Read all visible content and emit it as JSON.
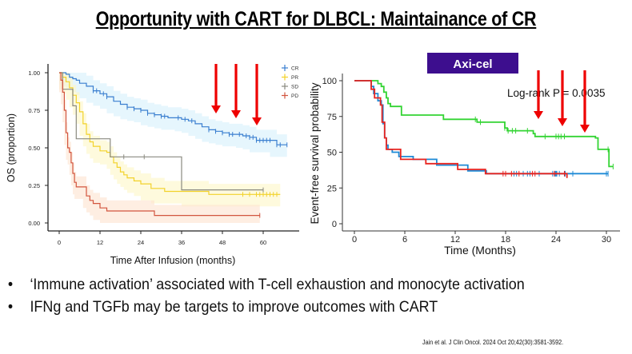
{
  "slide": {
    "title": "Opportunity with CART for DLBCL: Maintainance of CR",
    "bullets": [
      "‘Immune activation’ associated with T-cell exhaustion and monocyte activation",
      "IFNg and TGFb may be targets to improve outcomes with CART"
    ],
    "citation": "Jain et al. J Clin Oncol. 2024 Oct 20;42(30):3581-3592.",
    "bullet_glyph": "•"
  },
  "chart_data": [
    {
      "type": "line",
      "subtype": "kaplan-meier",
      "title": "",
      "xlabel": "Time After Infusion (months)",
      "ylabel": "OS (proportion)",
      "xlim": [
        0,
        68
      ],
      "ylim": [
        0,
        1
      ],
      "xticks": [
        0,
        12,
        24,
        36,
        48,
        60
      ],
      "yticks": [
        "0.00",
        "0.25",
        "0.50",
        "0.75",
        "1.00"
      ],
      "ytick_values": [
        0,
        0.25,
        0.5,
        0.75,
        1.0
      ],
      "legend": "top-right",
      "annotation_arrows_at_x": [
        46,
        52,
        58
      ],
      "series": [
        {
          "name": "CR",
          "color": "#3a7fd0",
          "band": "#d6f0fb",
          "x": [
            0,
            1,
            2,
            3,
            4,
            5,
            6,
            8,
            10,
            12,
            14,
            16,
            18,
            20,
            22,
            24,
            26,
            28,
            30,
            32,
            34,
            36,
            38,
            40,
            42,
            44,
            46,
            48,
            50,
            52,
            54,
            56,
            58,
            60,
            62,
            64,
            67
          ],
          "y": [
            1.0,
            1.0,
            0.99,
            0.97,
            0.96,
            0.95,
            0.93,
            0.91,
            0.88,
            0.86,
            0.84,
            0.81,
            0.79,
            0.77,
            0.76,
            0.75,
            0.73,
            0.72,
            0.71,
            0.7,
            0.7,
            0.69,
            0.68,
            0.66,
            0.64,
            0.62,
            0.61,
            0.6,
            0.59,
            0.59,
            0.58,
            0.57,
            0.55,
            0.55,
            0.55,
            0.52,
            0.52
          ],
          "censor_x": [
            10,
            11,
            13,
            14,
            20,
            22,
            24,
            26,
            28,
            30,
            31,
            35,
            37,
            39,
            44,
            46,
            48,
            50,
            51,
            53,
            55,
            56,
            57,
            58,
            59,
            60,
            61,
            62,
            64,
            65,
            67
          ]
        },
        {
          "name": "PR",
          "color": "#f2d22a",
          "band": "#fdf6c6",
          "x": [
            0,
            1,
            2,
            3,
            4,
            5,
            6,
            7,
            8,
            9,
            10,
            12,
            14,
            15,
            16,
            17,
            18,
            19,
            20,
            22,
            24,
            27,
            31,
            36,
            44,
            60,
            65
          ],
          "y": [
            1.0,
            0.97,
            0.94,
            0.9,
            0.85,
            0.8,
            0.74,
            0.66,
            0.59,
            0.54,
            0.51,
            0.48,
            0.47,
            0.44,
            0.4,
            0.37,
            0.34,
            0.32,
            0.3,
            0.28,
            0.26,
            0.23,
            0.21,
            0.21,
            0.19,
            0.19,
            0.19
          ],
          "censor_x": [
            54,
            56,
            58,
            59,
            60,
            61,
            62,
            63,
            64
          ]
        },
        {
          "name": "SD",
          "color": "#8a8a80",
          "band": null,
          "x": [
            0,
            1,
            2,
            4,
            5,
            14,
            15,
            35,
            36,
            60
          ],
          "y": [
            1.0,
            0.89,
            0.89,
            0.78,
            0.56,
            0.56,
            0.44,
            0.44,
            0.22,
            0.22
          ],
          "censor_x": [
            19,
            25,
            60
          ]
        },
        {
          "name": "PD",
          "color": "#d2553e",
          "band": "#fde3cf",
          "x": [
            0,
            0.5,
            1,
            1.5,
            2,
            2.5,
            3,
            3.5,
            4,
            4.5,
            5,
            6,
            7,
            8,
            9,
            10,
            12,
            14,
            20,
            28,
            40,
            59
          ],
          "y": [
            1.0,
            0.95,
            0.87,
            0.75,
            0.6,
            0.5,
            0.47,
            0.4,
            0.33,
            0.27,
            0.24,
            0.24,
            0.24,
            0.18,
            0.15,
            0.13,
            0.1,
            0.08,
            0.08,
            0.05,
            0.05,
            0.05
          ],
          "censor_x": [
            59
          ]
        }
      ]
    },
    {
      "type": "line",
      "subtype": "kaplan-meier",
      "title": "Axi-cel",
      "title_bg": "#3d0e8e",
      "xlabel": "Time (Months)",
      "ylabel": "Event-free survival probability",
      "xlim": [
        -1.5,
        31
      ],
      "ylim": [
        0,
        100
      ],
      "xticks": [
        0,
        6,
        12,
        18,
        24,
        30
      ],
      "yticks": [
        "0",
        "25",
        "50",
        "75",
        "100"
      ],
      "ytick_values": [
        0,
        25,
        50,
        75,
        100
      ],
      "annotation": "Log-rank P = 0.0035",
      "annotation_arrows_at_x": [
        22,
        25,
        27.5
      ],
      "series": [
        {
          "name": "green",
          "color": "#33d433",
          "x": [
            0,
            2,
            2.8,
            3.2,
            3.5,
            3.8,
            4.0,
            4.3,
            5,
            5.6,
            10.4,
            10.6,
            14.3,
            14.6,
            17.8,
            17.9,
            18.2,
            21.3,
            21.5,
            28.7,
            29,
            30.1,
            30.3,
            30.8
          ],
          "y": [
            100,
            100,
            98,
            96,
            92,
            88,
            84,
            82,
            82,
            76,
            76,
            73,
            73,
            71,
            71,
            67,
            65,
            63,
            61,
            60,
            52,
            52,
            40,
            40
          ],
          "censor_x": [
            14.4,
            15.0,
            17.9,
            18.3,
            18.8,
            19.2,
            20.6,
            22.7,
            24,
            24.3,
            24.6,
            25,
            30.2,
            30.8
          ]
        },
        {
          "name": "blue",
          "color": "#1e8ad6",
          "x": [
            0,
            1.7,
            2,
            2.3,
            2.8,
            3.2,
            3.4,
            3.6,
            3.8,
            4.0,
            4.5,
            5.3,
            7.0,
            9.8,
            13.5,
            15.7,
            25.8,
            30.2
          ],
          "y": [
            100,
            100,
            96,
            91,
            86,
            83,
            70,
            60,
            55,
            52,
            50,
            47,
            45,
            41,
            37,
            35,
            35,
            35
          ],
          "censor_x": [
            19.0,
            19.3,
            20.1,
            20.6,
            20.9,
            22.0,
            23.6,
            23.9,
            24.0,
            24.1,
            24.4,
            25.1,
            26.0,
            30.0,
            30.2
          ]
        },
        {
          "name": "red",
          "color": "#e8231f",
          "x": [
            0,
            1.7,
            2,
            2.4,
            3.1,
            3.3,
            3.6,
            3.8,
            4,
            5.5,
            8,
            8.5,
            12.3,
            15.6,
            25.3
          ],
          "y": [
            100,
            100,
            94,
            88,
            83,
            71,
            60,
            52,
            52,
            45,
            45,
            42,
            38,
            35,
            32
          ],
          "censor_x": [
            17.7,
            18.0,
            18.7,
            19.6,
            21.2,
            21.5,
            23.8,
            25.0
          ]
        }
      ]
    }
  ]
}
